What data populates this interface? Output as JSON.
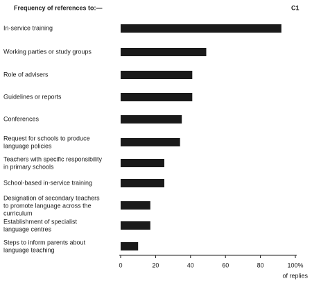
{
  "chart_data": {
    "type": "hbar",
    "title": "Frequency of references to:—",
    "figure_label": "C1",
    "x_label": "of replies",
    "categories": [
      [
        "In-service training"
      ],
      [
        "Working parties or study groups"
      ],
      [
        "Role of advisers"
      ],
      [
        "Guidelines or reports"
      ],
      [
        "Conferences"
      ],
      [
        "Request for schools to produce",
        "language policies"
      ],
      [
        "Teachers with specific responsibility",
        "in primary schools"
      ],
      [
        "School-based in-service training"
      ],
      [
        "Designation of secondary teachers",
        "to promote language across the",
        "curriculum"
      ],
      [
        "Establishment of specialist",
        "language centres"
      ],
      [
        "Steps to inform parents about",
        "language teaching"
      ]
    ],
    "values": [
      92,
      49,
      41,
      41,
      35,
      34,
      25,
      25,
      17,
      17,
      10
    ],
    "color": "#1a1a1a",
    "xlim": [
      0,
      100
    ],
    "xticks": [
      0,
      20,
      40,
      60,
      80,
      {
        "value": 100,
        "label": "100%"
      }
    ]
  }
}
